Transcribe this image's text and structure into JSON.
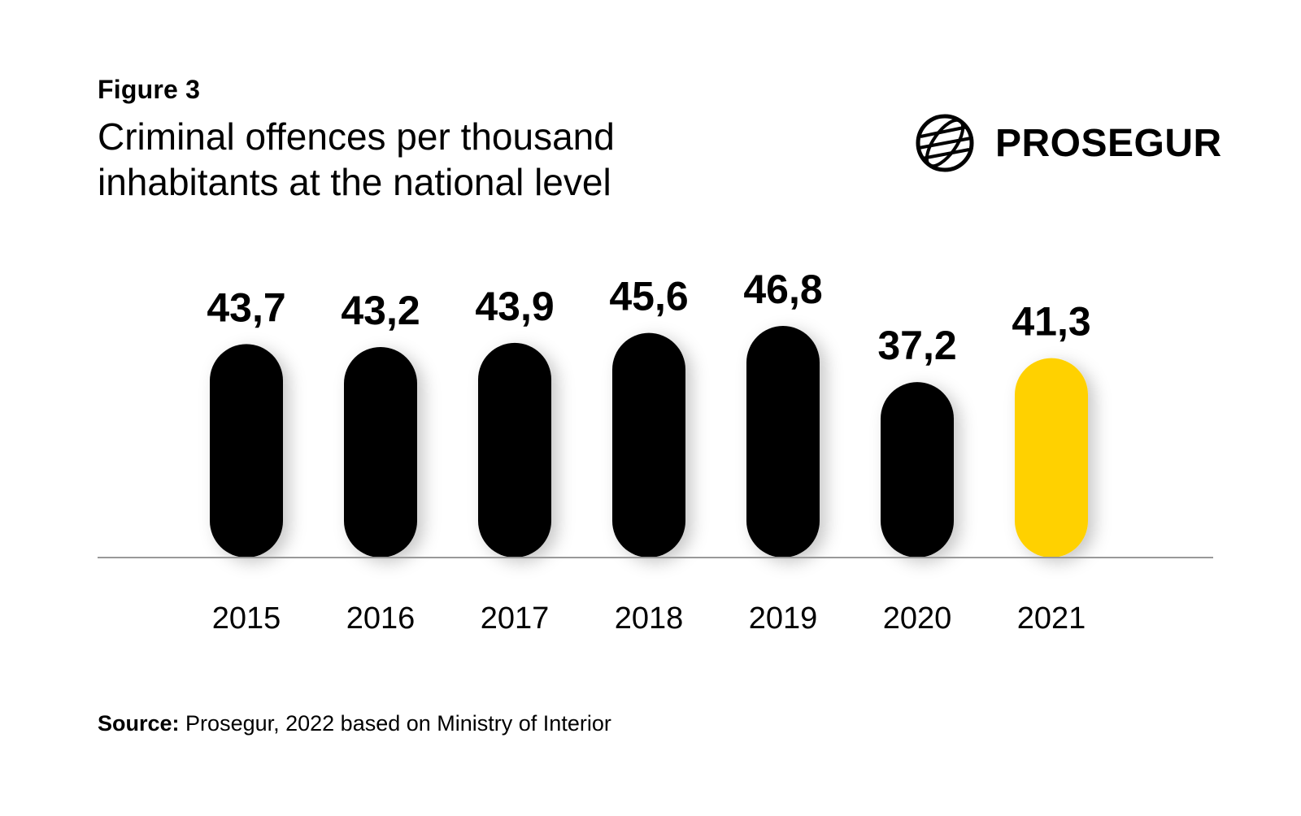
{
  "figure_label": "Figure 3",
  "title": "Criminal offences per thousand inhabitants at the national level",
  "logo": {
    "text": "PROSEGUR",
    "icon": "globe-icon"
  },
  "source": {
    "label": "Source:",
    "text": "Prosegur, 2022 based on Ministry of Interior"
  },
  "chart_data": {
    "type": "bar",
    "title": "Criminal offences per thousand inhabitants at the national level",
    "categories": [
      "2015",
      "2016",
      "2017",
      "2018",
      "2019",
      "2020",
      "2021"
    ],
    "values": [
      43.7,
      43.2,
      43.9,
      45.6,
      46.8,
      37.2,
      41.3
    ],
    "data_labels": [
      "43,7",
      "43,2",
      "43,9",
      "45,6",
      "46,8",
      "37,2",
      "41,3"
    ],
    "xlabel": "",
    "ylabel": "",
    "grid": false,
    "legend": "none",
    "colors": {
      "default": "#000000",
      "highlight": "#FFD100",
      "highlight_category": "2021",
      "baseline": "#999999"
    }
  }
}
